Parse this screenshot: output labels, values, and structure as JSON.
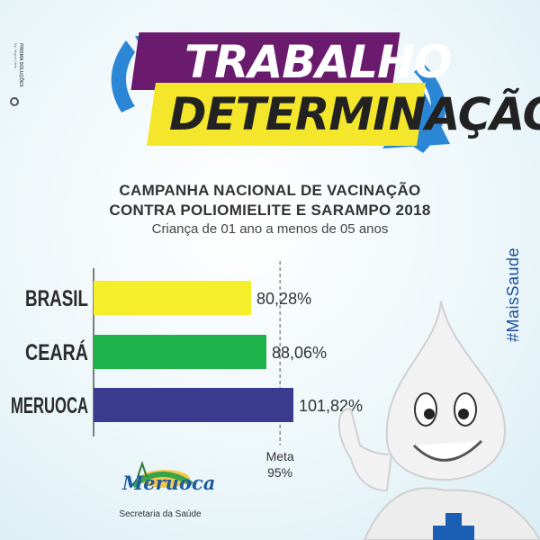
{
  "side_brand": {
    "line1": "PRISMA SOLUÇÕES",
    "line2": "By: Miguel Neto"
  },
  "banner": {
    "line1": "TRABALHO",
    "line2": "DETERMINAÇÃO"
  },
  "header": {
    "title_line1": "CAMPANHA NACIONAL DE VACINAÇÃO",
    "title_line2": "CONTRA POLIOMIELITE E SARAMPO 2018",
    "subtitle": "Criança de 01 ano a menos de 05 anos"
  },
  "hashtag": "#MaisSaude",
  "logo": {
    "name": "Meruoca",
    "caption": "Secretaria da Saúde"
  },
  "colors": {
    "brasil": "#f4ef2a",
    "ceara": "#1fb24a",
    "meruoca": "#3a3a8f",
    "banner_purple": "#6b1b6d",
    "banner_yellow": "#f4e62b",
    "arrow_blue": "#2b86d6"
  },
  "chart_data": {
    "type": "bar",
    "orientation": "horizontal",
    "categories": [
      "BRASIL",
      "CEARÁ",
      "MERUOCA"
    ],
    "values": [
      80.28,
      88.06,
      101.82
    ],
    "value_labels": [
      "80,28%",
      "88,06%",
      "101,82%"
    ],
    "xlim": [
      0,
      101.82
    ],
    "reference_line": {
      "value": 95,
      "label_line1": "Meta",
      "label_line2": "95%"
    },
    "grid": false
  }
}
